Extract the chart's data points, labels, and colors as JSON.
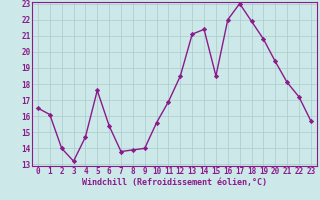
{
  "x": [
    0,
    1,
    2,
    3,
    4,
    5,
    6,
    7,
    8,
    9,
    10,
    11,
    12,
    13,
    14,
    15,
    16,
    17,
    18,
    19,
    20,
    21,
    22,
    23
  ],
  "y": [
    16.5,
    16.1,
    14.0,
    13.2,
    14.7,
    17.6,
    15.4,
    13.8,
    13.9,
    14.0,
    15.6,
    16.9,
    18.5,
    21.1,
    21.4,
    18.5,
    22.0,
    23.0,
    21.9,
    20.8,
    19.4,
    18.1,
    17.2,
    15.7
  ],
  "line_color": "#8b1a8b",
  "marker": "D",
  "marker_size": 2.2,
  "background_color": "#cce8e8",
  "grid_color": "#aacccc",
  "xlabel": "Windchill (Refroidissement éolien,°C)",
  "xlabel_fontsize": 6.0,
  "ylim": [
    13,
    23
  ],
  "xlim": [
    -0.5,
    23.5
  ],
  "yticks": [
    13,
    14,
    15,
    16,
    17,
    18,
    19,
    20,
    21,
    22,
    23
  ],
  "xticks": [
    0,
    1,
    2,
    3,
    4,
    5,
    6,
    7,
    8,
    9,
    10,
    11,
    12,
    13,
    14,
    15,
    16,
    17,
    18,
    19,
    20,
    21,
    22,
    23
  ],
  "tick_fontsize": 5.5,
  "tick_color": "#8b1a8b",
  "line_width": 1.0
}
